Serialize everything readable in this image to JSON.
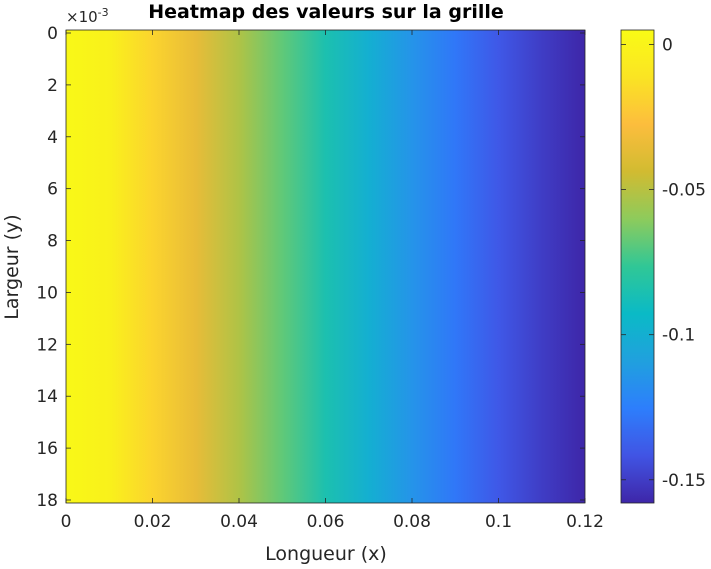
{
  "chart_data": {
    "type": "heatmap",
    "title": "Heatmap des valeurs sur la grille",
    "xlabel": "Longueur (x)",
    "ylabel": "Largeur (y)",
    "x_ticks": [
      "0",
      "0.02",
      "0.04",
      "0.06",
      "0.08",
      "0.1",
      "0.12"
    ],
    "x_tick_values": [
      0,
      0.02,
      0.04,
      0.06,
      0.08,
      0.1,
      0.12
    ],
    "y_ticks": [
      "0",
      "2",
      "4",
      "6",
      "8",
      "10",
      "12",
      "14",
      "16",
      "18"
    ],
    "y_tick_values": [
      0,
      2,
      4,
      6,
      8,
      10,
      12,
      14,
      16,
      18
    ],
    "y_exponent_label": "×10",
    "y_exponent_power": "-3",
    "xlim": [
      0,
      0.12
    ],
    "ylim": [
      0,
      0.018
    ],
    "y_reversed": true,
    "colorbar": {
      "ticks": [
        "0",
        "-0.05",
        "-0.1",
        "-0.15"
      ],
      "tick_values": [
        0,
        -0.05,
        -0.1,
        -0.15
      ],
      "clim": [
        -0.158,
        0.005
      ],
      "colormap": "parula"
    },
    "columns_x": [
      0,
      0.01,
      0.02,
      0.03,
      0.04,
      0.05,
      0.06,
      0.07,
      0.08,
      0.09,
      0.1,
      0.11,
      0.12
    ],
    "column_values": [
      0.003,
      -0.002,
      -0.018,
      -0.035,
      -0.052,
      -0.068,
      -0.085,
      -0.1,
      -0.115,
      -0.128,
      -0.14,
      -0.15,
      -0.158
    ],
    "colormap_stops": [
      "#3e26a8",
      "#4154e4",
      "#2d7efc",
      "#20a0de",
      "#0abac6",
      "#30c796",
      "#8dcb5c",
      "#d1bb31",
      "#fcbd3d",
      "#fae423",
      "#f9fb15"
    ]
  }
}
